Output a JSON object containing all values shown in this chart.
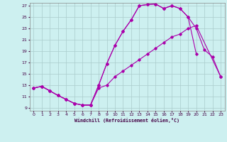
{
  "title": "",
  "xlabel": "Windchill (Refroidissement éolien,°C)",
  "bg_color": "#cdf0f0",
  "line_color": "#aa00aa",
  "grid_color": "#aacccc",
  "xlim": [
    -0.5,
    23.5
  ],
  "ylim": [
    8.5,
    27.5
  ],
  "xticks": [
    0,
    1,
    2,
    3,
    4,
    5,
    6,
    7,
    8,
    9,
    10,
    11,
    12,
    13,
    14,
    15,
    16,
    17,
    18,
    19,
    20,
    21,
    22,
    23
  ],
  "yticks": [
    9,
    11,
    13,
    15,
    17,
    19,
    21,
    23,
    25,
    27
  ],
  "line1_x": [
    0,
    1,
    2,
    3,
    4,
    5,
    6,
    7,
    8,
    9,
    10,
    11,
    12,
    13,
    14,
    15,
    16,
    17,
    18,
    19,
    20
  ],
  "line1_y": [
    12.5,
    12.8,
    12.0,
    11.2,
    10.5,
    9.8,
    9.5,
    9.5,
    13.0,
    16.8,
    20.0,
    22.5,
    24.5,
    27.0,
    27.2,
    27.3,
    26.5,
    27.0,
    26.5,
    25.0,
    18.5
  ],
  "line2_x": [
    0,
    1,
    2,
    3,
    4,
    5,
    6,
    7,
    8,
    9,
    10,
    11,
    12,
    13,
    14,
    15,
    16,
    17,
    18,
    19,
    20,
    21,
    22,
    23
  ],
  "line2_y": [
    12.5,
    12.8,
    12.0,
    11.2,
    10.5,
    9.8,
    9.5,
    9.5,
    13.0,
    16.8,
    20.0,
    22.5,
    24.5,
    27.0,
    27.2,
    27.3,
    26.5,
    27.0,
    26.5,
    25.0,
    23.0,
    19.2,
    18.0,
    14.5
  ],
  "line3_x": [
    0,
    1,
    2,
    3,
    4,
    5,
    6,
    7,
    8,
    9,
    10,
    11,
    12,
    13,
    14,
    15,
    16,
    17,
    18,
    19,
    20,
    23
  ],
  "line3_y": [
    12.5,
    12.8,
    12.0,
    11.2,
    10.5,
    9.8,
    9.5,
    9.5,
    12.5,
    13.0,
    14.5,
    15.5,
    16.5,
    17.5,
    18.5,
    19.5,
    20.5,
    21.5,
    22.0,
    23.0,
    23.5,
    14.5
  ]
}
